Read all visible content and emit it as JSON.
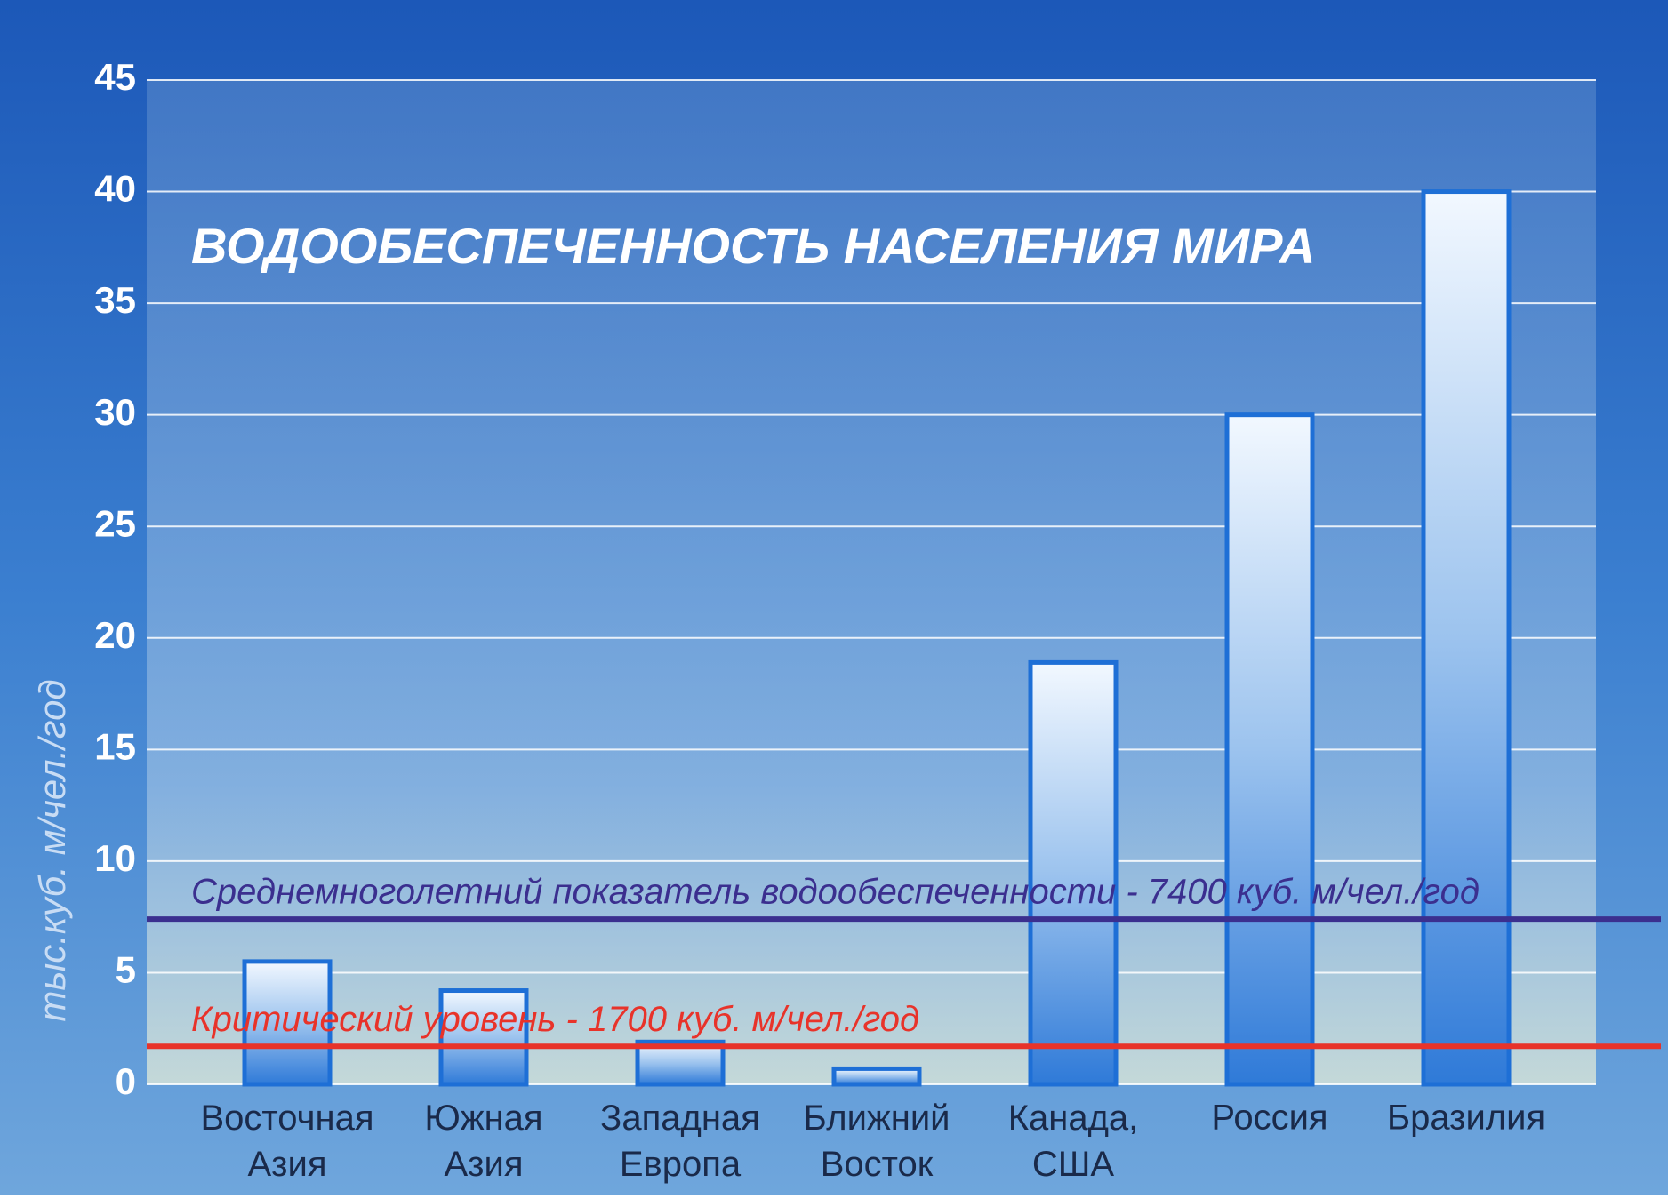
{
  "chart_data": {
    "type": "bar",
    "title": "ВОДООБЕСПЕЧЕННОСТЬ НАСЕЛЕНИЯ МИРА",
    "y_label": "тыс.куб. м/чел./год",
    "categories": [
      "Восточная Азия",
      "Южная Азия",
      "Западная Европа",
      "Ближний Восток",
      "Канада, США",
      "Россия",
      "Бразилия"
    ],
    "values": [
      5.5,
      4.2,
      1.9,
      0.7,
      18.9,
      30,
      40
    ],
    "color": "#1e6fd6",
    "ylim": [
      0,
      45
    ],
    "yticks": [
      0,
      5,
      10,
      15,
      20,
      25,
      30,
      35,
      40,
      45
    ],
    "grid": true,
    "reference_lines": [
      {
        "value": 7.4,
        "label": "Среднемноголетний показатель водообеспеченности - 7400 куб. м/чел./год",
        "color": "#3b2f8f"
      },
      {
        "value": 1.7,
        "label": "Критический уровень - 1700 куб. м/чел./год",
        "color": "#e8332a"
      }
    ]
  }
}
